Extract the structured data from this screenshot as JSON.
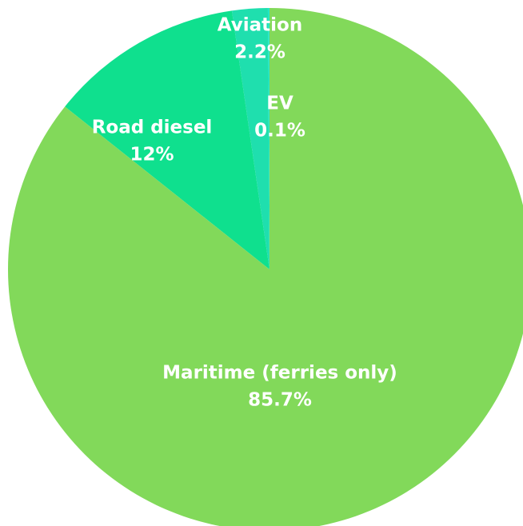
{
  "chart_data": {
    "type": "pie",
    "categories": [
      "EV",
      "Aviation",
      "Road diesel",
      "Maritime (ferries only)"
    ],
    "values": [
      0.1,
      2.2,
      12,
      85.7
    ],
    "value_labels": [
      "0.1%",
      "2.2%",
      "12%",
      "85.7%"
    ],
    "colors": [
      "#22e6c6",
      "#1fdfae",
      "#0fe08e",
      "#82d95a"
    ]
  }
}
